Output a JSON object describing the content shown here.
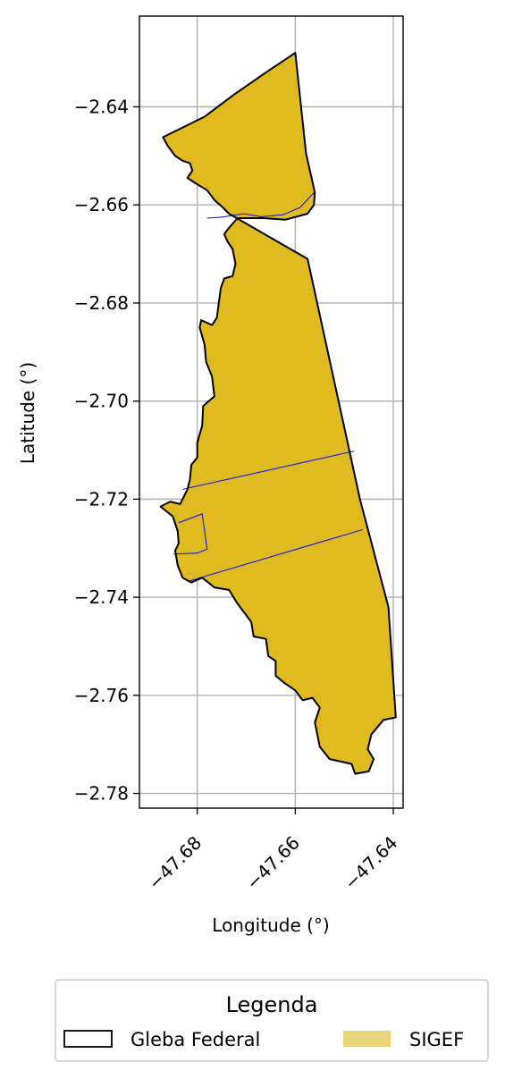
{
  "chart_data": {
    "type": "map",
    "xlabel": "Longitude (°)",
    "ylabel": "Latitude (°)",
    "xlim": [
      -47.6918,
      -47.638
    ],
    "ylim": [
      -2.783,
      -2.6215
    ],
    "x_ticks": [
      {
        "value": -47.68,
        "label": "−47.68"
      },
      {
        "value": -47.66,
        "label": "−47.66"
      },
      {
        "value": -47.64,
        "label": "−47.64"
      }
    ],
    "y_ticks": [
      {
        "value": -2.64,
        "label": "−2.64"
      },
      {
        "value": -2.66,
        "label": "−2.66"
      },
      {
        "value": -2.68,
        "label": "−2.68"
      },
      {
        "value": -2.7,
        "label": "−2.70"
      },
      {
        "value": -2.72,
        "label": "−2.72"
      },
      {
        "value": -2.74,
        "label": "−2.74"
      },
      {
        "value": -2.76,
        "label": "−2.76"
      },
      {
        "value": -2.78,
        "label": "−2.78"
      }
    ],
    "grid": true,
    "legend": {
      "title": "Legenda",
      "placement": "bottom-center",
      "entries": [
        {
          "label": "Gleba Federal",
          "style": "outline"
        },
        {
          "label": "SIGEF",
          "style": "fill"
        }
      ]
    },
    "colors": {
      "gleba_outline": "#000000",
      "sigef_fill": "#dfbb20",
      "sigef_legend_fill": "#e8d47a",
      "parcel_lines": "#1a1adb",
      "grid": "#b0b0b0"
    },
    "gleba_boundary": [
      [
        -47.66,
        -2.629
      ],
      [
        -47.6578,
        -2.6495
      ],
      [
        -47.656,
        -2.6575
      ],
      [
        -47.6562,
        -2.66
      ],
      [
        -47.6575,
        -2.6618
      ],
      [
        -47.662,
        -2.663
      ],
      [
        -47.6665,
        -2.6627
      ],
      [
        -47.6718,
        -2.6627
      ],
      [
        -47.6738,
        -2.665
      ],
      [
        -47.6745,
        -2.666
      ],
      [
        -47.6738,
        -2.6675
      ],
      [
        -47.6728,
        -2.669
      ],
      [
        -47.6722,
        -2.672
      ],
      [
        -47.6728,
        -2.6745
      ],
      [
        -47.6745,
        -2.675
      ],
      [
        -47.6752,
        -2.677
      ],
      [
        -47.676,
        -2.683
      ],
      [
        -47.677,
        -2.6845
      ],
      [
        -47.6792,
        -2.6835
      ],
      [
        -47.6795,
        -2.685
      ],
      [
        -47.6785,
        -2.6885
      ],
      [
        -47.6782,
        -2.692
      ],
      [
        -47.677,
        -2.695
      ],
      [
        -47.6765,
        -2.699
      ],
      [
        -47.6788,
        -2.701
      ],
      [
        -47.679,
        -2.705
      ],
      [
        -47.68,
        -2.7085
      ],
      [
        -47.68,
        -2.7115
      ],
      [
        -47.6812,
        -2.713
      ],
      [
        -47.6815,
        -2.716
      ],
      [
        -47.682,
        -2.718
      ],
      [
        -47.6835,
        -2.721
      ],
      [
        -47.6855,
        -2.7205
      ],
      [
        -47.6875,
        -2.7215
      ],
      [
        -47.685,
        -2.7235
      ],
      [
        -47.684,
        -2.7265
      ],
      [
        -47.6838,
        -2.729
      ],
      [
        -47.6845,
        -2.7305
      ],
      [
        -47.684,
        -2.7335
      ],
      [
        -47.683,
        -2.736
      ],
      [
        -47.6812,
        -2.737
      ],
      [
        -47.679,
        -2.736
      ],
      [
        -47.6765,
        -2.738
      ],
      [
        -47.6735,
        -2.7385
      ],
      [
        -47.672,
        -2.741
      ],
      [
        -47.6705,
        -2.743
      ],
      [
        -47.669,
        -2.745
      ],
      [
        -47.6685,
        -2.748
      ],
      [
        -47.666,
        -2.7485
      ],
      [
        -47.6655,
        -2.752
      ],
      [
        -47.664,
        -2.753
      ],
      [
        -47.664,
        -2.756
      ],
      [
        -47.6622,
        -2.7575
      ],
      [
        -47.66,
        -2.759
      ],
      [
        -47.6585,
        -2.761
      ],
      [
        -47.6565,
        -2.7605
      ],
      [
        -47.655,
        -2.7625
      ],
      [
        -47.656,
        -2.7655
      ],
      [
        -47.6555,
        -2.768
      ],
      [
        -47.655,
        -2.7705
      ],
      [
        -47.653,
        -2.773
      ],
      [
        -47.6485,
        -2.774
      ],
      [
        -47.6478,
        -2.776
      ],
      [
        -47.645,
        -2.7755
      ],
      [
        -47.644,
        -2.773
      ],
      [
        -47.6452,
        -2.771
      ],
      [
        -47.6445,
        -2.768
      ],
      [
        -47.642,
        -2.765
      ],
      [
        -47.6395,
        -2.7645
      ],
      [
        -47.641,
        -2.742
      ],
      [
        -47.6468,
        -2.72
      ],
      [
        -47.6575,
        -2.671
      ],
      [
        -47.66,
        -2.629
      ]
    ],
    "north_boundary": [
      [
        -47.66,
        -2.629
      ],
      [
        -47.666,
        -2.633
      ],
      [
        -47.6725,
        -2.6375
      ],
      [
        -47.6785,
        -2.642
      ],
      [
        -47.687,
        -2.6462
      ],
      [
        -47.686,
        -2.648
      ],
      [
        -47.6845,
        -2.65
      ],
      [
        -47.683,
        -2.651
      ],
      [
        -47.6815,
        -2.6515
      ],
      [
        -47.681,
        -2.653
      ],
      [
        -47.682,
        -2.6545
      ],
      [
        -47.6805,
        -2.6555
      ],
      [
        -47.678,
        -2.657
      ],
      [
        -47.6765,
        -2.659
      ],
      [
        -47.6748,
        -2.6605
      ],
      [
        -47.6735,
        -2.6618
      ],
      [
        -47.6718,
        -2.6627
      ]
    ],
    "parcel_lines": [
      [
        [
          -47.678,
          -2.6627
        ],
        [
          -47.675,
          -2.6625
        ],
        [
          -47.6705,
          -2.6618
        ],
        [
          -47.667,
          -2.6624
        ],
        [
          -47.6625,
          -2.662
        ],
        [
          -47.659,
          -2.6605
        ],
        [
          -47.6562,
          -2.6575
        ]
      ],
      [
        [
          -47.683,
          -2.718
        ],
        [
          -47.648,
          -2.7102
        ]
      ],
      [
        [
          -47.682,
          -2.7368
        ],
        [
          -47.6462,
          -2.7262
        ]
      ],
      [
        [
          -47.6838,
          -2.7248
        ],
        [
          -47.679,
          -2.723
        ],
        [
          -47.678,
          -2.7302
        ],
        [
          -47.68,
          -2.731
        ],
        [
          -47.6848,
          -2.7312
        ]
      ]
    ]
  }
}
